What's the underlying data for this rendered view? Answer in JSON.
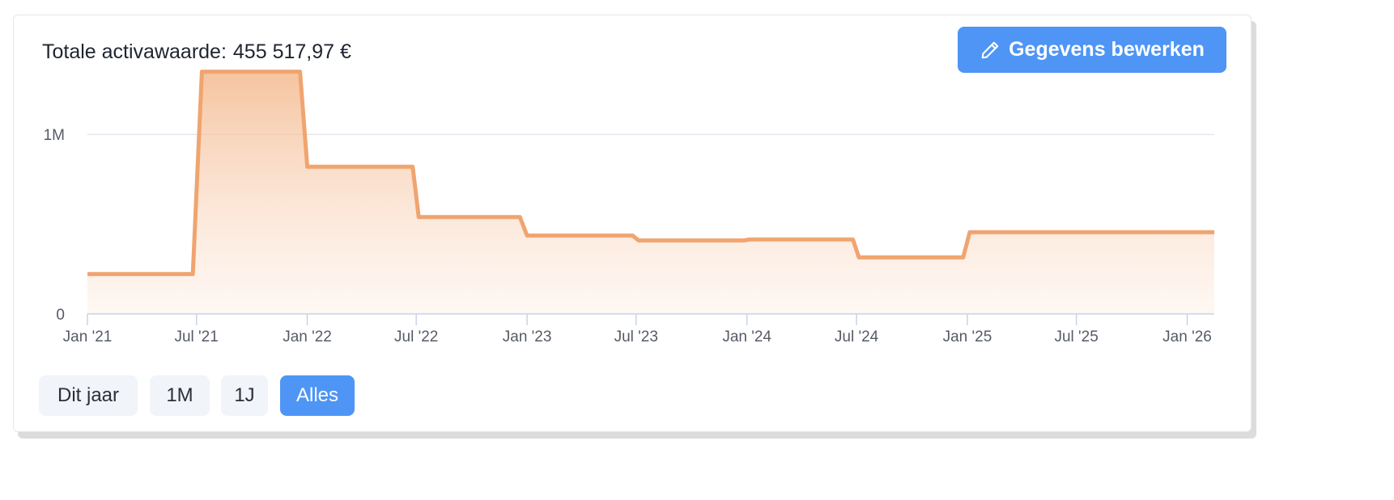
{
  "header": {
    "title_label": "Totale activawaarde:",
    "title_value": "455 517,97 €"
  },
  "toolbar": {
    "edit_label": "Gegevens bewerken",
    "edit_icon": "pencil-icon"
  },
  "range_buttons": [
    "Dit jaar",
    "1M",
    "1J",
    "Alles"
  ],
  "active_range": "Alles",
  "colors": {
    "accent": "#4e95f5",
    "line": "#f0a46f",
    "area_top": "#f4b98e",
    "grid": "#e3e7ee"
  },
  "chart_data": {
    "type": "area",
    "interpolation": "step",
    "x_tick_labels": [
      "Jan '21",
      "Jul '21",
      "Jan '22",
      "Jul '22",
      "Jan '23",
      "Jul '23",
      "Jan '24",
      "Jul '24",
      "Jan '25",
      "Jul '25",
      "Jan '26"
    ],
    "y_tick_labels": [
      "0",
      "1M"
    ],
    "y_ticks": [
      0,
      1000000
    ],
    "xlim": [
      "2021-01-01",
      "2026-02-15"
    ],
    "ylim": [
      0,
      1330000
    ],
    "grid": true,
    "points": [
      {
        "x": "2021-01-01",
        "y": 222000
      },
      {
        "x": "2021-06-25",
        "y": 222000
      },
      {
        "x": "2021-07-10",
        "y": 1350000
      },
      {
        "x": "2021-12-20",
        "y": 1350000
      },
      {
        "x": "2022-01-01",
        "y": 820000
      },
      {
        "x": "2022-06-25",
        "y": 820000
      },
      {
        "x": "2022-07-05",
        "y": 540000
      },
      {
        "x": "2022-12-20",
        "y": 540000
      },
      {
        "x": "2023-01-01",
        "y": 437000
      },
      {
        "x": "2023-06-25",
        "y": 437000
      },
      {
        "x": "2023-07-05",
        "y": 410000
      },
      {
        "x": "2023-12-28",
        "y": 410000
      },
      {
        "x": "2024-01-05",
        "y": 415000
      },
      {
        "x": "2024-06-25",
        "y": 415000
      },
      {
        "x": "2024-07-05",
        "y": 315000
      },
      {
        "x": "2024-12-25",
        "y": 315000
      },
      {
        "x": "2025-01-05",
        "y": 455518
      },
      {
        "x": "2026-02-15",
        "y": 455518
      }
    ]
  }
}
